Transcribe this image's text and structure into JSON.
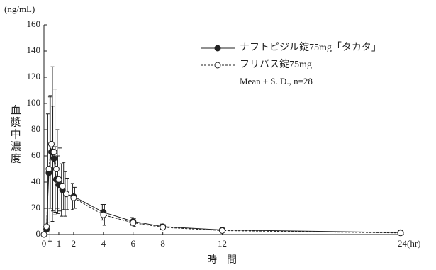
{
  "chart_data": {
    "type": "line",
    "y_unit": "(ng/mL)",
    "ylabel": "血漿中濃度",
    "xlabel": "時　間",
    "annotation": "Mean ± S. D., n=28",
    "x": [
      0,
      0.17,
      0.33,
      0.5,
      0.67,
      0.83,
      1,
      1.25,
      1.5,
      2,
      4,
      6,
      8,
      12,
      24
    ],
    "series": [
      {
        "name": "ナフトピジル錠75mg「タカタ」",
        "color": "#222222",
        "marker": "filled",
        "dashed": false,
        "values": [
          0,
          4,
          47,
          63,
          58,
          42,
          38,
          34,
          31,
          29,
          17,
          10,
          6,
          3.5,
          1.5
        ],
        "errors": [
          0,
          2,
          45,
          43,
          40,
          25,
          22,
          20,
          17,
          10,
          6,
          3,
          2,
          1,
          0.5
        ]
      },
      {
        "name": "フリバス錠75mg",
        "color": "#222222",
        "marker": "open",
        "dashed": true,
        "values": [
          0,
          6,
          50,
          69,
          63,
          50,
          42,
          37,
          31,
          28,
          15,
          9,
          5.5,
          3,
          1.2
        ],
        "errors": [
          0,
          3,
          55,
          59,
          48,
          30,
          24,
          18,
          12,
          8,
          8,
          3,
          2,
          1,
          0.5
        ]
      }
    ],
    "xlim": [
      0,
      24
    ],
    "xticks": [
      0,
      1,
      2,
      4,
      6,
      8,
      12,
      {
        "value": 24,
        "label": "24(hr)"
      }
    ],
    "ylim": [
      0,
      160
    ],
    "yticks": [
      0,
      20,
      40,
      60,
      80,
      100,
      120,
      140,
      160
    ],
    "grid": false
  }
}
